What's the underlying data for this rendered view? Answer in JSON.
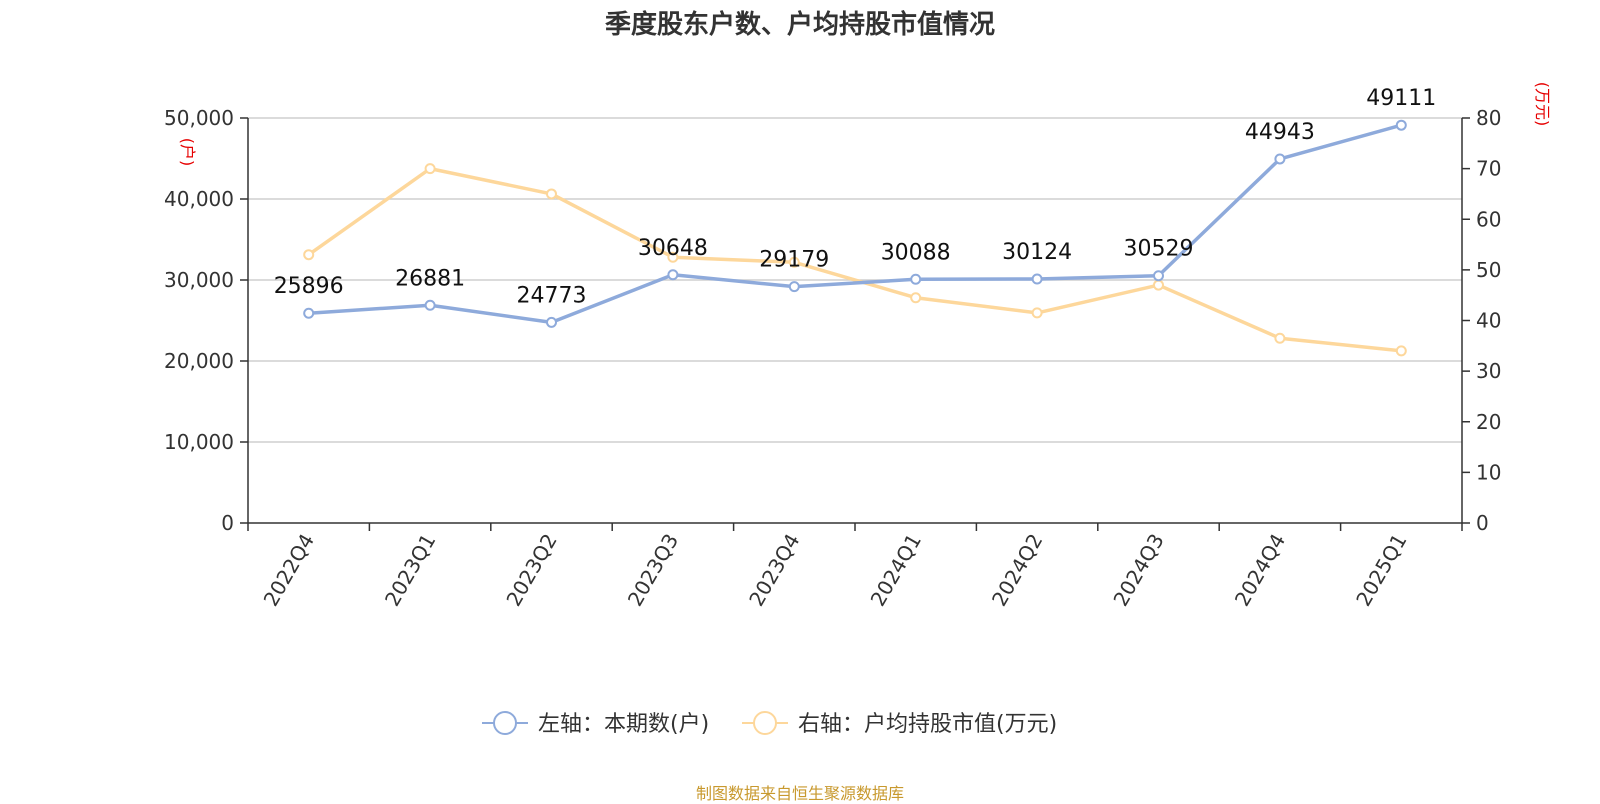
{
  "title": "季度股东户数、户均持股市值情况",
  "source": "制图数据来自恒生聚源数据库",
  "chart_data": {
    "type": "line",
    "categories": [
      "2022Q4",
      "2023Q1",
      "2023Q2",
      "2023Q3",
      "2023Q4",
      "2024Q1",
      "2024Q2",
      "2024Q3",
      "2024Q4",
      "2025Q1"
    ],
    "series": [
      {
        "name": "左轴：本期数(户)",
        "axis": "left",
        "color": "#8eaadb",
        "values": [
          25896,
          26881,
          24773,
          30648,
          29179,
          30088,
          30124,
          30529,
          44943,
          49111
        ],
        "data_labels": true
      },
      {
        "name": "右轴：户均持股市值(万元)",
        "axis": "right",
        "color": "#fdd79b",
        "values": [
          53,
          70,
          65,
          52.5,
          51.5,
          44.5,
          41.5,
          47,
          36.5,
          34
        ],
        "data_labels": false
      }
    ],
    "left_axis": {
      "unit": "(户)",
      "ylim": [
        0,
        50000
      ],
      "ticks": [
        0,
        10000,
        20000,
        30000,
        40000,
        50000
      ],
      "tick_labels": [
        "0",
        "10,000",
        "20,000",
        "30,000",
        "40,000",
        "50,000"
      ]
    },
    "right_axis": {
      "unit": "(万元)",
      "ylim": [
        0,
        80
      ],
      "ticks": [
        0,
        10,
        20,
        30,
        40,
        50,
        60,
        70,
        80
      ],
      "tick_labels": [
        "0",
        "10",
        "20",
        "30",
        "40",
        "50",
        "60",
        "70",
        "80"
      ]
    },
    "grid": true,
    "legend_position": "bottom"
  }
}
